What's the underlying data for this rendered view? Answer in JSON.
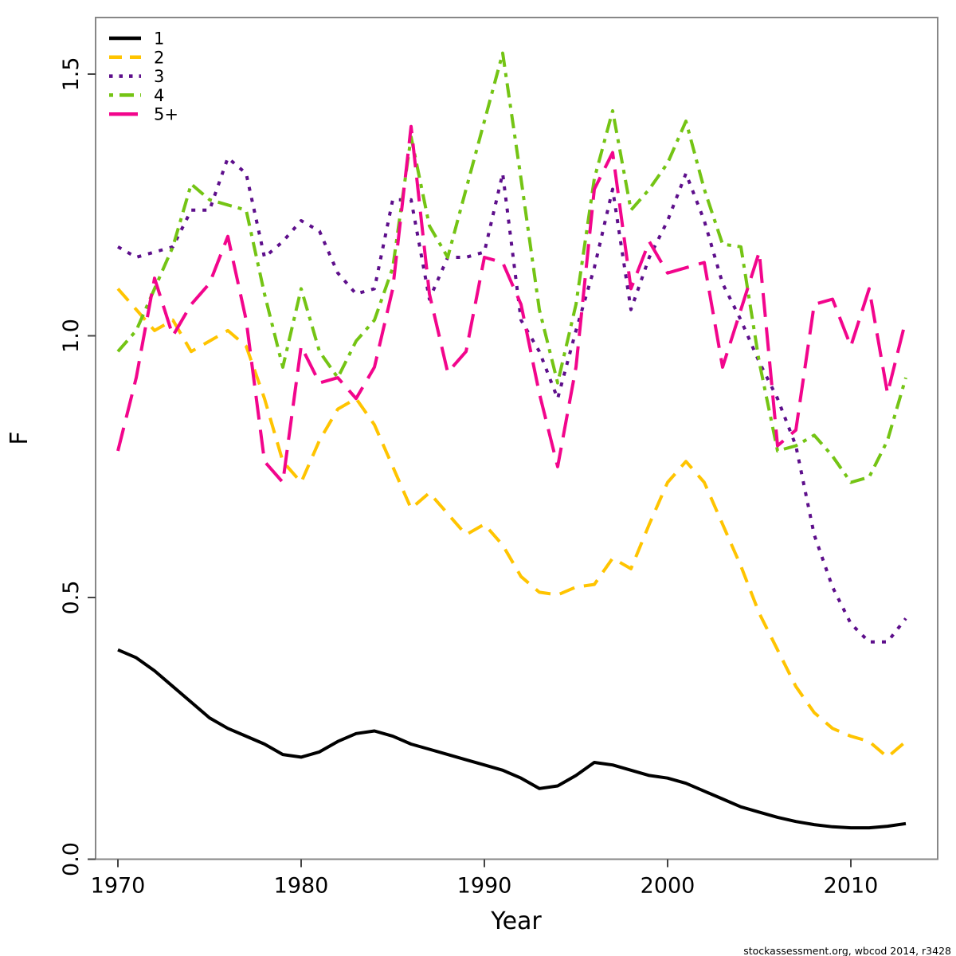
{
  "figure": {
    "footer": "stockassessment.org, wbcod 2014, r3428",
    "background": "#ffffff",
    "box_color": "#878787",
    "tick_color": "#444444"
  },
  "chart_data": {
    "type": "line",
    "title": "",
    "xlabel": "Year",
    "ylabel": "F",
    "grid": false,
    "legend_position": "top-left",
    "xlim": [
      1968.8,
      2014.7
    ],
    "ylim": [
      0.0,
      1.61
    ],
    "x_ticks": [
      1970,
      1980,
      1990,
      2000,
      2010
    ],
    "y_ticks": [
      "0.0",
      "0.5",
      "1.0",
      "1.5"
    ],
    "x": [
      1970,
      1971,
      1972,
      1973,
      1974,
      1975,
      1976,
      1977,
      1978,
      1979,
      1980,
      1981,
      1982,
      1983,
      1984,
      1985,
      1986,
      1987,
      1988,
      1989,
      1990,
      1991,
      1992,
      1993,
      1994,
      1995,
      1996,
      1997,
      1998,
      1999,
      2000,
      2001,
      2002,
      2003,
      2004,
      2005,
      2006,
      2007,
      2008,
      2009,
      2010,
      2011,
      2012,
      2013
    ],
    "series": [
      {
        "name": "1",
        "color": "#000000",
        "dash": "solid",
        "values": [
          0.4,
          0.385,
          0.36,
          0.33,
          0.3,
          0.27,
          0.25,
          0.235,
          0.22,
          0.2,
          0.195,
          0.205,
          0.225,
          0.24,
          0.245,
          0.235,
          0.22,
          0.21,
          0.2,
          0.19,
          0.18,
          0.17,
          0.155,
          0.135,
          0.14,
          0.16,
          0.185,
          0.18,
          0.17,
          0.16,
          0.155,
          0.145,
          0.13,
          0.115,
          0.1,
          0.09,
          0.08,
          0.072,
          0.066,
          0.062,
          0.06,
          0.06,
          0.063,
          0.068
        ]
      },
      {
        "name": "2",
        "color": "#FFC400",
        "dash": "dashed",
        "values": [
          1.09,
          1.05,
          1.01,
          1.03,
          0.97,
          0.99,
          1.01,
          0.98,
          0.88,
          0.76,
          0.72,
          0.8,
          0.86,
          0.88,
          0.83,
          0.75,
          0.67,
          0.7,
          0.66,
          0.62,
          0.64,
          0.6,
          0.54,
          0.51,
          0.505,
          0.52,
          0.525,
          0.575,
          0.555,
          0.64,
          0.72,
          0.76,
          0.72,
          0.64,
          0.56,
          0.47,
          0.4,
          0.33,
          0.28,
          0.25,
          0.235,
          0.225,
          0.195,
          0.225
        ]
      },
      {
        "name": "3",
        "color": "#5D0E8B",
        "dash": "dotted",
        "values": [
          1.17,
          1.15,
          1.16,
          1.17,
          1.24,
          1.24,
          1.34,
          1.31,
          1.15,
          1.18,
          1.22,
          1.2,
          1.12,
          1.08,
          1.09,
          1.26,
          1.26,
          1.07,
          1.15,
          1.15,
          1.16,
          1.31,
          1.03,
          0.97,
          0.88,
          1.01,
          1.13,
          1.28,
          1.05,
          1.15,
          1.22,
          1.31,
          1.22,
          1.1,
          1.03,
          0.95,
          0.88,
          0.79,
          0.62,
          0.52,
          0.45,
          0.415,
          0.415,
          0.46
        ]
      },
      {
        "name": "4",
        "color": "#74C414",
        "dash": "dashdot",
        "values": [
          0.97,
          1.01,
          1.09,
          1.17,
          1.29,
          1.26,
          1.25,
          1.24,
          1.08,
          0.94,
          1.09,
          0.97,
          0.92,
          0.99,
          1.03,
          1.13,
          1.38,
          1.21,
          1.15,
          1.28,
          1.41,
          1.54,
          1.3,
          1.05,
          0.91,
          1.06,
          1.3,
          1.43,
          1.24,
          1.28,
          1.33,
          1.41,
          1.28,
          1.175,
          1.17,
          0.95,
          0.78,
          0.79,
          0.81,
          0.77,
          0.72,
          0.73,
          0.8,
          0.92
        ]
      },
      {
        "name": "5+",
        "color": "#F2058C",
        "dash": "longdash",
        "values": [
          0.78,
          0.92,
          1.11,
          1.0,
          1.06,
          1.1,
          1.19,
          1.03,
          0.76,
          0.72,
          0.98,
          0.91,
          0.92,
          0.88,
          0.94,
          1.09,
          1.4,
          1.08,
          0.93,
          0.97,
          1.15,
          1.14,
          1.06,
          0.89,
          0.75,
          0.94,
          1.28,
          1.35,
          1.09,
          1.18,
          1.12,
          1.13,
          1.14,
          0.94,
          1.05,
          1.16,
          0.79,
          0.82,
          1.06,
          1.07,
          0.98,
          1.09,
          0.89,
          1.03
        ]
      }
    ]
  }
}
